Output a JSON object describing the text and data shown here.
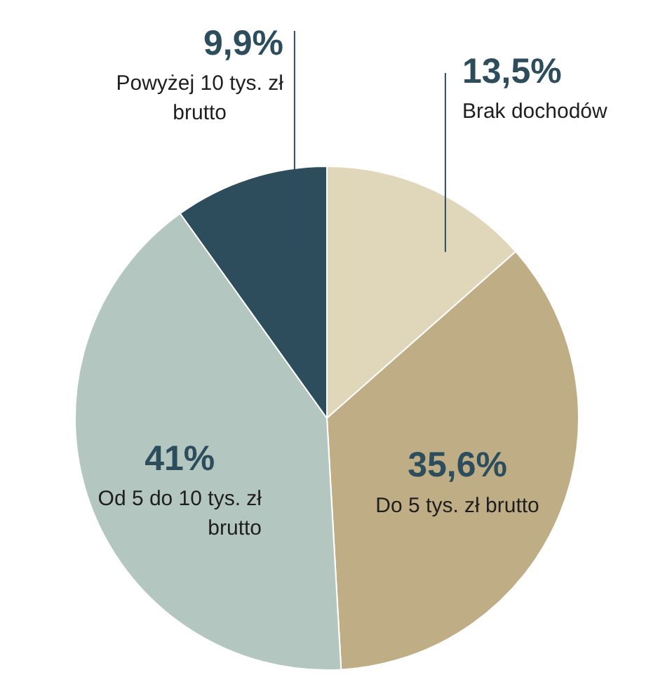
{
  "chart_data": {
    "type": "pie",
    "categories": [
      "Brak dochodów",
      "Do 5 tys. zł brutto",
      "Od 5 do 10 tys. zł brutto",
      "Powyżej 10 tys. zł brutto"
    ],
    "values": [
      13.5,
      35.6,
      41,
      9.9
    ],
    "value_labels": [
      "13,5%",
      "35,6%",
      "41%",
      "9,9%"
    ],
    "colors": [
      "#e0d6ba",
      "#bfae85",
      "#b4c6c0",
      "#2d4d5d"
    ],
    "legend": false
  }
}
